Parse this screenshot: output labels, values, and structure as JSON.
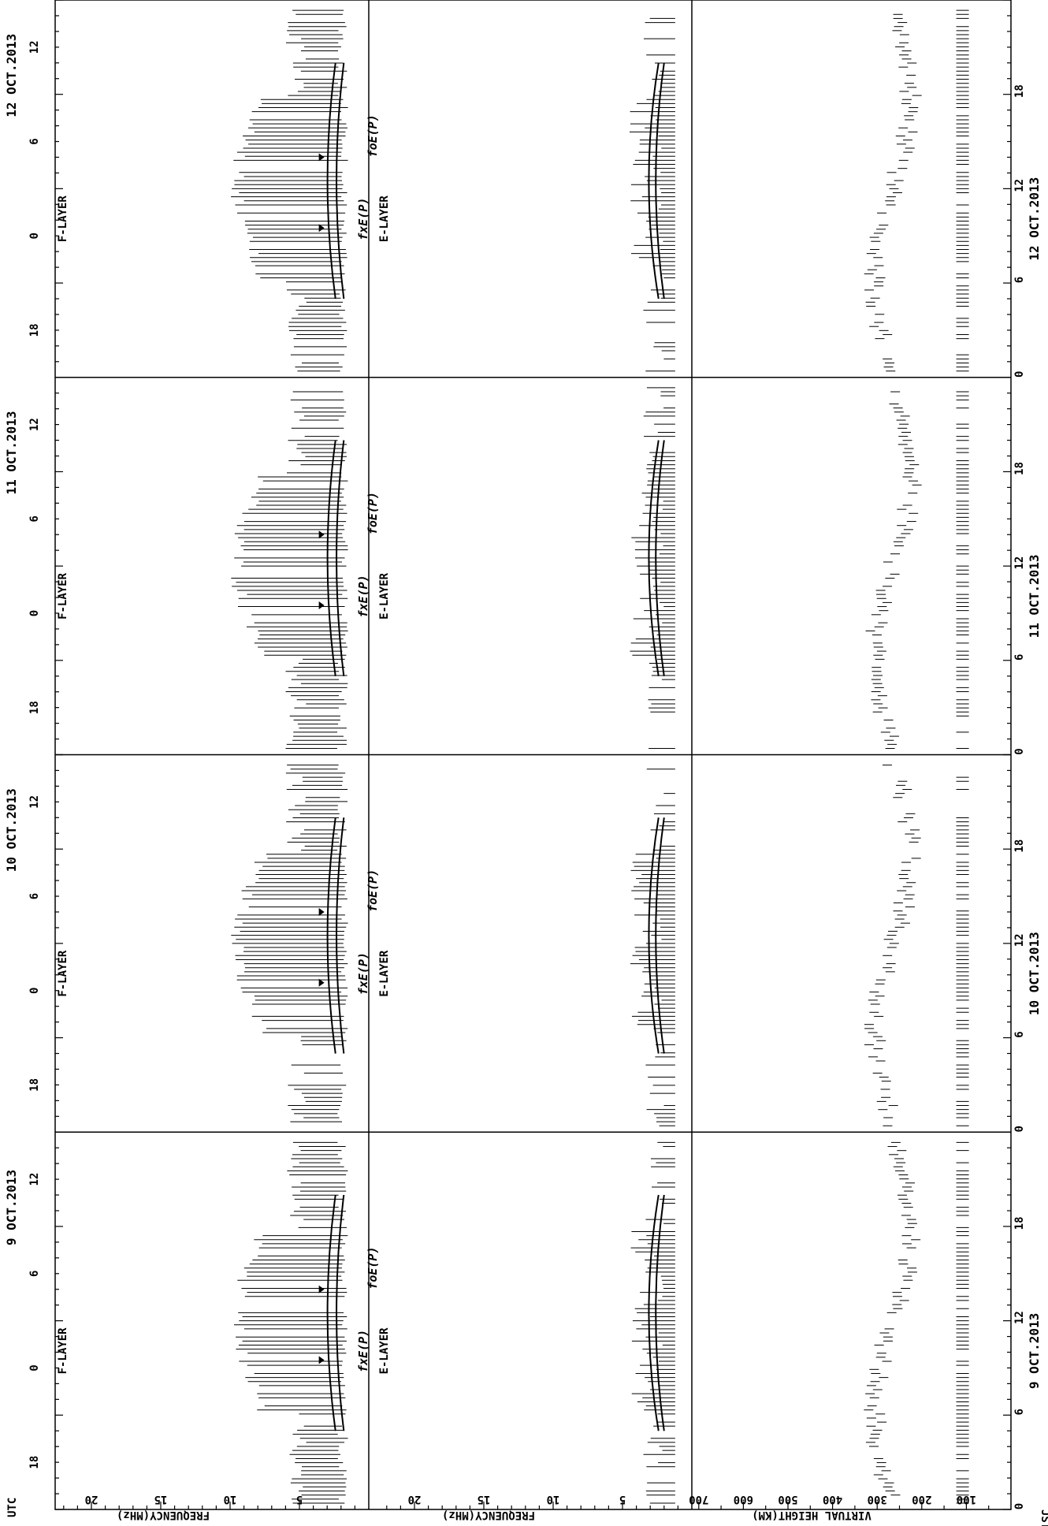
{
  "figure_labels": {
    "utc": "UTC",
    "jst": "JST",
    "freq_axis_label_1": "FREQUENCY(MHz)",
    "freq_axis_label_2": "FREQUENCY(MHz)",
    "height_axis_label": "VIRTUAL HEIGHT(KM)",
    "f_layer": "F-LAYER",
    "e_layer": "E-LAYER",
    "curve_fxe": "fxE(P)",
    "curve_foe": "foE(P)"
  },
  "chart_data": [
    {
      "type": "scatter",
      "panel": "F-layer frequency",
      "ylabel": "FREQUENCY(MHz)",
      "ylim": [
        0,
        22
      ],
      "yticks": [
        5,
        10,
        15,
        20
      ],
      "x_ticks_utc": [
        "18",
        "0",
        "6",
        "12"
      ],
      "days": [
        "9 OCT.2013",
        "10 OCT.2013",
        "11 OCT.2013",
        "12 OCT.2013"
      ],
      "annotations": [
        "F-LAYER",
        "fxE(P)",
        "foE(P)"
      ]
    },
    {
      "type": "scatter",
      "panel": "E-layer frequency",
      "ylabel": "FREQUENCY(MHz)",
      "ylim": [
        0,
        22
      ],
      "yticks": [
        5,
        10,
        15,
        20
      ],
      "annotations": [
        "E-LAYER"
      ]
    },
    {
      "type": "scatter",
      "panel": "Virtual height",
      "ylabel": "VIRTUAL HEIGHT(KM)",
      "ylim": [
        0,
        700
      ],
      "yticks": [
        100,
        200,
        300,
        400,
        500,
        600,
        700
      ],
      "x_ticks_jst": [
        "0",
        "6",
        "12",
        "18"
      ],
      "days_jst": [
        "9 OCT.2013",
        "10 OCT.2013",
        "11 OCT.2013",
        "12 OCT.2013"
      ]
    }
  ],
  "utc_ticks": [
    "18",
    "0",
    "6",
    "12"
  ],
  "jst_ticks": [
    "0",
    "6",
    "12",
    "18"
  ],
  "freq_ticks": [
    "5",
    "10",
    "15",
    "20"
  ],
  "height_ticks": [
    "100",
    "200",
    "300",
    "400",
    "500",
    "600",
    "700"
  ],
  "days_utc": [
    "9 OCT.2013",
    "10 OCT.2013",
    "11 OCT.2013",
    "12 OCT.2013"
  ],
  "days_jst": [
    "9 OCT.2013",
    "10 OCT.2013",
    "11 OCT.2013",
    "12 OCT.2013"
  ]
}
